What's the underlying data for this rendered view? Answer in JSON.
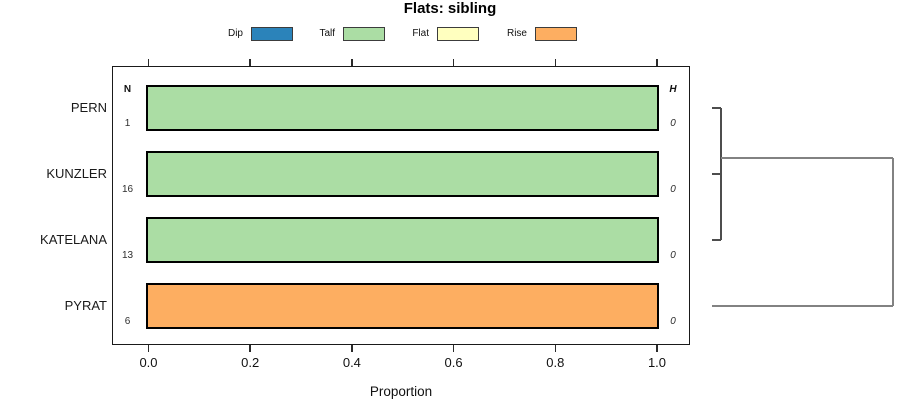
{
  "title": "Flats: sibling",
  "chart_data": {
    "type": "bar",
    "orientation": "horizontal",
    "stacked": true,
    "title": "Flats: sibling",
    "xlabel": "Proportion",
    "xlim": [
      0,
      1
    ],
    "xticks": [
      "0.0",
      "0.2",
      "0.4",
      "0.6",
      "0.8",
      "1.0"
    ],
    "xtick_values": [
      0,
      0.2,
      0.4,
      0.6,
      0.8,
      1.0
    ],
    "grid": false,
    "legend_position": "top",
    "legend": [
      {
        "label": "Dip",
        "color": "#2b83ba"
      },
      {
        "label": "Talf",
        "color": "#abdda4"
      },
      {
        "label": "Flat",
        "color": "#ffffbf"
      },
      {
        "label": "Rise",
        "color": "#fdae61"
      }
    ],
    "columns": {
      "n_header": "N",
      "h_header": "H"
    },
    "rows": [
      {
        "label": "PERN",
        "n": "1",
        "h": "0",
        "segments": [
          {
            "category": "Talf",
            "value": 1.0
          }
        ]
      },
      {
        "label": "KUNZLER",
        "n": "16",
        "h": "0",
        "segments": [
          {
            "category": "Talf",
            "value": 1.0
          }
        ]
      },
      {
        "label": "KATELANA",
        "n": "13",
        "h": "0",
        "segments": [
          {
            "category": "Talf",
            "value": 1.0
          }
        ]
      },
      {
        "label": "PYRAT",
        "n": "6",
        "h": "0",
        "segments": [
          {
            "category": "Rise",
            "value": 1.0
          }
        ]
      }
    ],
    "dendrogram": {
      "side": "right",
      "leaves": [
        "PERN",
        "KUNZLER",
        "KATELANA",
        "PYRAT"
      ],
      "merges": [
        {
          "a": "L1",
          "b": "L2",
          "height": 0.05
        },
        {
          "a": "L0",
          "b": "C0",
          "height": 0.05
        },
        {
          "a": "C1",
          "b": "L3",
          "height": 1.0
        }
      ]
    }
  }
}
